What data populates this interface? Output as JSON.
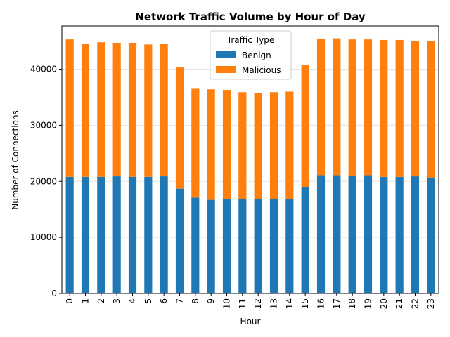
{
  "chart_data": {
    "type": "bar",
    "stacked": true,
    "title": "Network Traffic Volume by Hour of Day",
    "xlabel": "Hour",
    "ylabel": "Number of Connections",
    "categories": [
      "0",
      "1",
      "2",
      "3",
      "4",
      "5",
      "6",
      "7",
      "8",
      "9",
      "10",
      "11",
      "12",
      "13",
      "14",
      "15",
      "16",
      "17",
      "18",
      "19",
      "20",
      "21",
      "22",
      "23"
    ],
    "series": [
      {
        "name": "Benign",
        "color": "#1f77b4",
        "values": [
          20800,
          20800,
          20800,
          20900,
          20800,
          20800,
          20900,
          18700,
          17100,
          16700,
          16800,
          16800,
          16800,
          16800,
          16900,
          19000,
          21100,
          21100,
          21000,
          21100,
          20800,
          20800,
          20900,
          20700
        ]
      },
      {
        "name": "Malicious",
        "color": "#ff7f0e",
        "values": [
          24500,
          23700,
          24000,
          23800,
          23900,
          23600,
          23600,
          21600,
          19400,
          19700,
          19500,
          19100,
          19000,
          19100,
          19100,
          21800,
          24300,
          24400,
          24300,
          24200,
          24400,
          24400,
          24100,
          24300
        ]
      }
    ],
    "ylim": [
      0,
      47700
    ],
    "yticks": [
      0,
      10000,
      20000,
      30000,
      40000
    ],
    "grid": "y",
    "legend": {
      "title": "Traffic Type",
      "position": "top-center"
    }
  }
}
